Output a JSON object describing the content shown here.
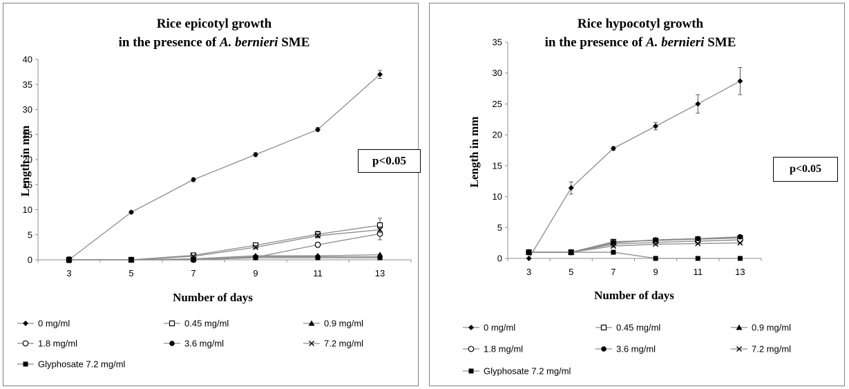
{
  "colors": {
    "line": "#8c8c8c",
    "marker": "#000000",
    "axis": "#8c8c8c",
    "border": "#7f7f7f"
  },
  "chart_data": [
    {
      "type": "line",
      "title_line1": "Rice epicotyl growth",
      "title_line2_prefix": "in the presence of",
      "title_line2_species": "A. bernieri",
      "title_line2_suffix": "SME",
      "xlabel": "Number of days",
      "ylabel": "Length in mm",
      "annotation": "p<0.05",
      "x": [
        3,
        5,
        7,
        9,
        11,
        13
      ],
      "ylim": [
        0,
        40
      ],
      "yticks": [
        0,
        5,
        10,
        15,
        20,
        25,
        30,
        35,
        40
      ],
      "series": [
        {
          "name": "0 mg/ml",
          "marker": "diamond",
          "values": [
            0,
            9.5,
            16,
            21,
            26,
            37
          ],
          "errors": [
            0.6,
            0.3,
            0.4,
            0.4,
            0.4,
            0.8
          ]
        },
        {
          "name": "0.45 mg/ml",
          "marker": "square-open",
          "values": [
            0,
            0,
            0.9,
            2.9,
            5.1,
            6.9
          ],
          "errors": [
            0,
            0.3,
            0.2,
            0.4,
            0.6,
            1.4
          ]
        },
        {
          "name": "0.9 mg/ml",
          "marker": "triangle",
          "values": [
            0,
            0,
            0.2,
            0.8,
            0.8,
            1.0
          ],
          "errors": [
            0,
            0,
            0,
            0.1,
            0.1,
            0.1
          ]
        },
        {
          "name": "1.8 mg/ml",
          "marker": "circle-open",
          "values": [
            0,
            0,
            0,
            0.5,
            3.0,
            5.2
          ],
          "errors": [
            0,
            0,
            0,
            0.1,
            0.5,
            1.2
          ]
        },
        {
          "name": "3.6 mg/ml",
          "marker": "circle",
          "values": [
            0,
            0,
            0,
            0.6,
            0.6,
            0.6
          ],
          "errors": [
            0,
            0,
            0,
            0.1,
            0.1,
            0.1
          ]
        },
        {
          "name": "7.2 mg/ml",
          "marker": "x",
          "values": [
            0,
            0,
            0.7,
            2.5,
            4.8,
            6.0
          ],
          "errors": [
            0,
            0,
            0.1,
            0.3,
            0.4,
            0.6
          ]
        },
        {
          "name": "Glyphosate 7.2 mg/ml",
          "marker": "square",
          "values": [
            0,
            0,
            0,
            0.4,
            0.4,
            0.4
          ],
          "errors": [
            0,
            0,
            0,
            0.1,
            0.1,
            0.1
          ]
        }
      ]
    },
    {
      "type": "line",
      "title_line1": "Rice hypocotyl growth",
      "title_line2_prefix": "in the presence of",
      "title_line2_species": "A. bernieri",
      "title_line2_suffix": "SME",
      "xlabel": "Number of days",
      "ylabel": "Length in mm",
      "annotation": "p<0.05",
      "x": [
        3,
        5,
        7,
        9,
        11,
        13
      ],
      "ylim": [
        0,
        35
      ],
      "yticks": [
        0,
        5,
        10,
        15,
        20,
        25,
        30,
        35
      ],
      "series": [
        {
          "name": "0 mg/ml",
          "marker": "diamond",
          "values": [
            0,
            11.4,
            17.8,
            21.4,
            25.0,
            28.7
          ],
          "errors": [
            0,
            1.0,
            0.3,
            0.6,
            1.5,
            2.2
          ]
        },
        {
          "name": "0.45 mg/ml",
          "marker": "square-open",
          "values": [
            1.0,
            1.0,
            2.7,
            2.9,
            3.1,
            3.3
          ],
          "errors": [
            0,
            0,
            0.1,
            0.1,
            0.1,
            0.1
          ]
        },
        {
          "name": "0.9 mg/ml",
          "marker": "triangle",
          "values": [
            1.0,
            1.0,
            2.5,
            3.0,
            3.2,
            3.4
          ],
          "errors": [
            0,
            0,
            0.1,
            0.1,
            0.1,
            0.1
          ]
        },
        {
          "name": "1.8 mg/ml",
          "marker": "circle-open",
          "values": [
            1.0,
            1.0,
            2.3,
            2.6,
            2.8,
            3.0
          ],
          "errors": [
            0,
            0,
            0.1,
            0.1,
            0.1,
            0.1
          ]
        },
        {
          "name": "3.6 mg/ml",
          "marker": "circle",
          "values": [
            1.0,
            1.0,
            2.6,
            3.0,
            3.2,
            3.5
          ],
          "errors": [
            0,
            0,
            0.1,
            0.1,
            0.1,
            0.1
          ]
        },
        {
          "name": "7.2 mg/ml",
          "marker": "x",
          "values": [
            1.0,
            1.0,
            2.0,
            2.3,
            2.4,
            2.5
          ],
          "errors": [
            0,
            0,
            0.1,
            0.1,
            0.1,
            0.1
          ]
        },
        {
          "name": "Glyphosate 7.2 mg/ml",
          "marker": "square",
          "values": [
            1.0,
            1.0,
            1.0,
            0,
            0,
            0
          ],
          "errors": [
            0,
            0,
            0,
            0,
            0,
            0
          ]
        }
      ]
    }
  ]
}
